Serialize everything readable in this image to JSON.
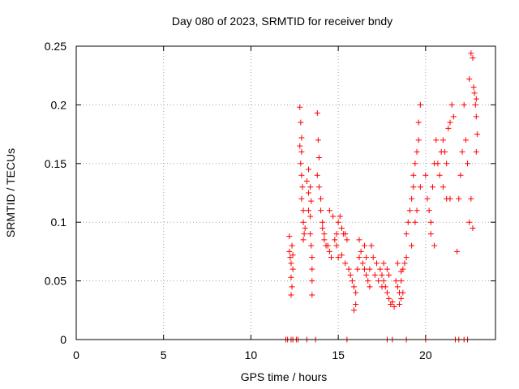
{
  "chart_data": {
    "type": "scatter",
    "title": "Day 080 of 2023, SRMTID for receiver bndy",
    "xlabel": "GPS time / hours",
    "ylabel": "SRMTID / TECUs",
    "xlim": [
      0,
      24
    ],
    "ylim": [
      0,
      0.25
    ],
    "x_ticks": [
      0,
      5,
      10,
      15,
      20
    ],
    "y_ticks": [
      0,
      0.05,
      0.1,
      0.15,
      0.2,
      0.25
    ],
    "x_tick_labels": [
      "0",
      "5",
      "10",
      "15",
      "20"
    ],
    "y_tick_labels": [
      "0",
      "0.05",
      "0.1",
      "0.15",
      "0.2",
      "0.25"
    ],
    "grid": true,
    "marker": "+",
    "series": [
      {
        "name": "SRMTID",
        "color": "#ff0000",
        "points": [
          [
            12.0,
            0.0
          ],
          [
            12.1,
            0.0
          ],
          [
            12.3,
            0.0
          ],
          [
            12.4,
            0.0
          ],
          [
            12.6,
            0.0
          ],
          [
            12.7,
            0.0
          ],
          [
            13.2,
            0.0
          ],
          [
            13.7,
            0.0
          ],
          [
            15.5,
            0.0
          ],
          [
            17.8,
            0.0
          ],
          [
            18.1,
            0.0
          ],
          [
            18.9,
            0.0
          ],
          [
            20.0,
            0.0
          ],
          [
            21.7,
            0.0
          ],
          [
            21.9,
            0.0
          ],
          [
            22.2,
            0.0
          ],
          [
            22.4,
            0.0
          ],
          [
            12.2,
            0.088
          ],
          [
            12.2,
            0.075
          ],
          [
            12.25,
            0.07
          ],
          [
            12.3,
            0.065
          ],
          [
            12.3,
            0.053
          ],
          [
            12.35,
            0.045
          ],
          [
            12.3,
            0.038
          ],
          [
            12.35,
            0.08
          ],
          [
            12.4,
            0.072
          ],
          [
            12.4,
            0.06
          ],
          [
            12.8,
            0.198
          ],
          [
            12.85,
            0.185
          ],
          [
            12.9,
            0.172
          ],
          [
            12.8,
            0.165
          ],
          [
            12.9,
            0.16
          ],
          [
            12.85,
            0.15
          ],
          [
            12.9,
            0.14
          ],
          [
            12.95,
            0.13
          ],
          [
            12.9,
            0.12
          ],
          [
            13.0,
            0.11
          ],
          [
            13.0,
            0.1
          ],
          [
            13.05,
            0.09
          ],
          [
            13.1,
            0.095
          ],
          [
            13.0,
            0.085
          ],
          [
            13.2,
            0.135
          ],
          [
            13.3,
            0.125
          ],
          [
            13.3,
            0.11
          ],
          [
            13.4,
            0.105
          ],
          [
            13.4,
            0.09
          ],
          [
            13.45,
            0.08
          ],
          [
            13.5,
            0.07
          ],
          [
            13.5,
            0.06
          ],
          [
            13.5,
            0.05
          ],
          [
            13.5,
            0.038
          ],
          [
            13.3,
            0.145
          ],
          [
            13.4,
            0.13
          ],
          [
            13.45,
            0.118
          ],
          [
            13.8,
            0.193
          ],
          [
            13.85,
            0.17
          ],
          [
            13.9,
            0.155
          ],
          [
            13.8,
            0.14
          ],
          [
            13.9,
            0.13
          ],
          [
            14.0,
            0.12
          ],
          [
            14.0,
            0.11
          ],
          [
            14.1,
            0.1
          ],
          [
            14.1,
            0.095
          ],
          [
            14.2,
            0.09
          ],
          [
            14.2,
            0.085
          ],
          [
            14.3,
            0.08
          ],
          [
            14.4,
            0.08
          ],
          [
            14.5,
            0.075
          ],
          [
            14.6,
            0.07
          ],
          [
            14.8,
            0.085
          ],
          [
            14.9,
            0.09
          ],
          [
            15.0,
            0.1
          ],
          [
            15.1,
            0.105
          ],
          [
            15.2,
            0.095
          ],
          [
            15.3,
            0.09
          ],
          [
            15.4,
            0.09
          ],
          [
            15.5,
            0.085
          ],
          [
            14.5,
            0.11
          ],
          [
            14.7,
            0.105
          ],
          [
            14.9,
            0.08
          ],
          [
            15.0,
            0.07
          ],
          [
            15.2,
            0.072
          ],
          [
            15.4,
            0.065
          ],
          [
            15.6,
            0.06
          ],
          [
            15.7,
            0.055
          ],
          [
            15.8,
            0.05
          ],
          [
            15.9,
            0.045
          ],
          [
            16.0,
            0.04
          ],
          [
            16.0,
            0.03
          ],
          [
            15.9,
            0.025
          ],
          [
            16.1,
            0.06
          ],
          [
            16.2,
            0.07
          ],
          [
            16.3,
            0.075
          ],
          [
            16.4,
            0.065
          ],
          [
            16.5,
            0.06
          ],
          [
            16.6,
            0.055
          ],
          [
            16.7,
            0.05
          ],
          [
            16.8,
            0.045
          ],
          [
            16.2,
            0.085
          ],
          [
            16.5,
            0.08
          ],
          [
            16.6,
            0.07
          ],
          [
            16.8,
            0.06
          ],
          [
            17.0,
            0.07
          ],
          [
            17.2,
            0.065
          ],
          [
            17.4,
            0.06
          ],
          [
            17.5,
            0.055
          ],
          [
            17.6,
            0.05
          ],
          [
            17.7,
            0.045
          ],
          [
            17.8,
            0.04
          ],
          [
            17.9,
            0.035
          ],
          [
            18.0,
            0.03
          ],
          [
            18.1,
            0.032
          ],
          [
            18.2,
            0.028
          ],
          [
            16.9,
            0.08
          ],
          [
            17.1,
            0.055
          ],
          [
            17.3,
            0.05
          ],
          [
            17.5,
            0.045
          ],
          [
            17.6,
            0.065
          ],
          [
            17.8,
            0.06
          ],
          [
            17.9,
            0.055
          ],
          [
            18.3,
            0.05
          ],
          [
            18.4,
            0.045
          ],
          [
            18.5,
            0.04
          ],
          [
            18.6,
            0.05
          ],
          [
            18.7,
            0.06
          ],
          [
            18.8,
            0.065
          ],
          [
            18.9,
            0.07
          ],
          [
            18.5,
            0.03
          ],
          [
            18.6,
            0.035
          ],
          [
            18.7,
            0.04
          ],
          [
            18.4,
            0.065
          ],
          [
            18.6,
            0.058
          ],
          [
            18.9,
            0.09
          ],
          [
            19.0,
            0.1
          ],
          [
            19.1,
            0.11
          ],
          [
            19.2,
            0.12
          ],
          [
            19.3,
            0.13
          ],
          [
            19.3,
            0.14
          ],
          [
            19.4,
            0.15
          ],
          [
            19.5,
            0.16
          ],
          [
            19.6,
            0.17
          ],
          [
            19.6,
            0.185
          ],
          [
            19.7,
            0.2
          ],
          [
            19.2,
            0.08
          ],
          [
            19.4,
            0.1
          ],
          [
            19.5,
            0.11
          ],
          [
            19.7,
            0.13
          ],
          [
            20.0,
            0.14
          ],
          [
            20.1,
            0.12
          ],
          [
            20.2,
            0.11
          ],
          [
            20.3,
            0.1
          ],
          [
            20.4,
            0.13
          ],
          [
            20.5,
            0.15
          ],
          [
            20.6,
            0.17
          ],
          [
            20.7,
            0.15
          ],
          [
            20.8,
            0.14
          ],
          [
            20.9,
            0.16
          ],
          [
            21.0,
            0.17
          ],
          [
            21.1,
            0.16
          ],
          [
            21.2,
            0.15
          ],
          [
            21.3,
            0.18
          ],
          [
            21.4,
            0.185
          ],
          [
            21.5,
            0.2
          ],
          [
            21.6,
            0.19
          ],
          [
            21.0,
            0.13
          ],
          [
            21.2,
            0.12
          ],
          [
            21.4,
            0.12
          ],
          [
            20.3,
            0.09
          ],
          [
            20.5,
            0.08
          ],
          [
            21.8,
            0.075
          ],
          [
            21.9,
            0.12
          ],
          [
            22.0,
            0.14
          ],
          [
            22.1,
            0.16
          ],
          [
            22.2,
            0.2
          ],
          [
            22.3,
            0.17
          ],
          [
            22.4,
            0.15
          ],
          [
            22.5,
            0.1
          ],
          [
            22.6,
            0.12
          ],
          [
            22.7,
            0.095
          ],
          [
            22.5,
            0.222
          ],
          [
            22.6,
            0.244
          ],
          [
            22.7,
            0.24
          ],
          [
            22.8,
            0.21
          ],
          [
            22.9,
            0.19
          ],
          [
            22.85,
            0.2
          ],
          [
            22.95,
            0.175
          ],
          [
            22.9,
            0.16
          ],
          [
            22.75,
            0.215
          ],
          [
            22.9,
            0.205
          ]
        ]
      }
    ]
  }
}
